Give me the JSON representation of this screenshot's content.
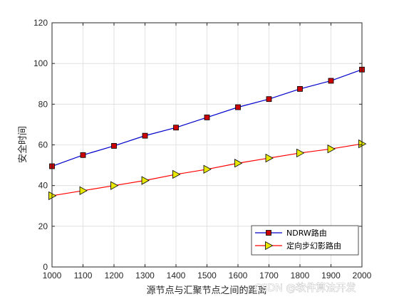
{
  "chart_data": {
    "type": "line",
    "title": "",
    "xlabel": "源节点与汇聚节点之间的距离",
    "ylabel": "安全时间",
    "x": [
      1000,
      1100,
      1200,
      1300,
      1400,
      1500,
      1600,
      1700,
      1800,
      1900,
      2000
    ],
    "xlim": [
      1000,
      2000
    ],
    "ylim": [
      0,
      120
    ],
    "xticks": [
      1000,
      1100,
      1200,
      1300,
      1400,
      1500,
      1600,
      1700,
      1800,
      1900,
      2000
    ],
    "yticks": [
      0,
      20,
      40,
      60,
      80,
      100,
      120
    ],
    "grid": true,
    "legend_position": "bottom-right",
    "series": [
      {
        "name": "NDRW路由",
        "color": "#0000cc",
        "marker": "square",
        "marker_color": "#cc0000",
        "values": [
          49.5,
          55,
          59.5,
          64.5,
          68.5,
          73.5,
          78.5,
          82.5,
          87.5,
          91.5,
          97
        ]
      },
      {
        "name": "定向步幻影路由",
        "color": "#ff0000",
        "marker": "triangle-right",
        "marker_color": "#e6e600",
        "values": [
          35,
          37.5,
          40,
          42.5,
          45.5,
          48,
          51,
          53.5,
          56,
          58,
          60.5
        ]
      }
    ]
  },
  "watermark": "CSDN @软件算法开发"
}
